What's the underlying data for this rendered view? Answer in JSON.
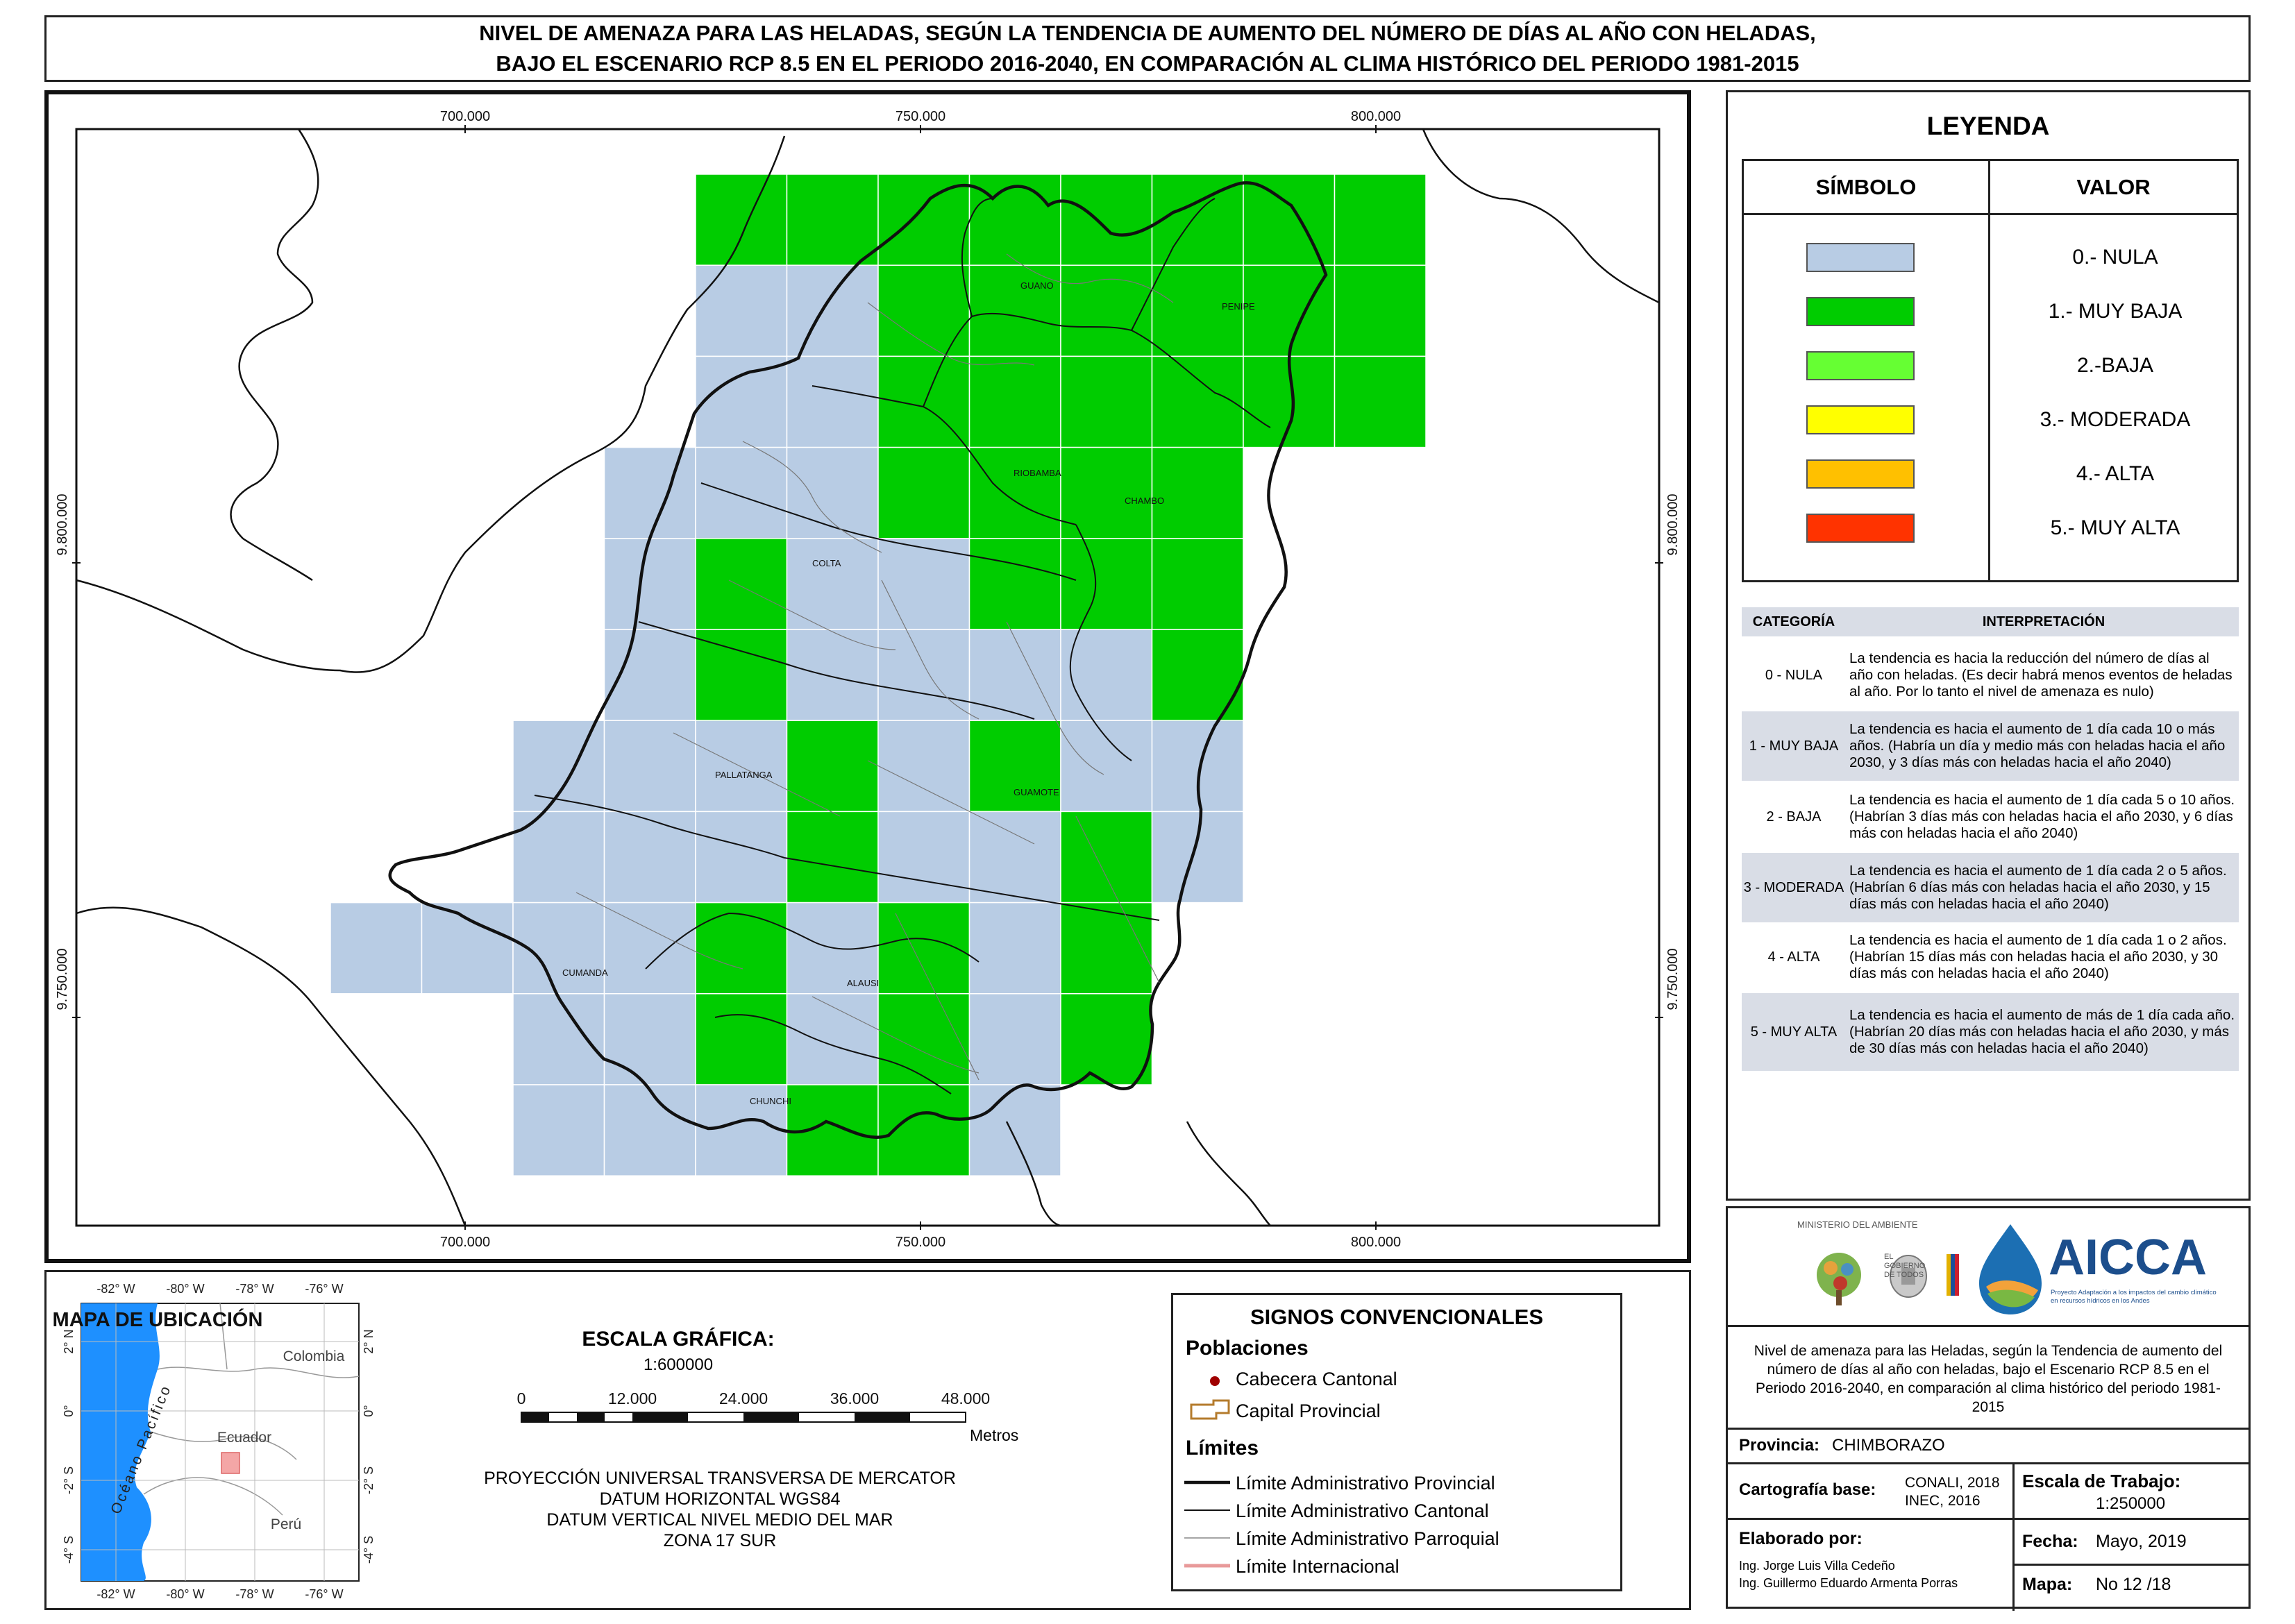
{
  "title": {
    "line1": "NIVEL DE AMENAZA PARA LAS HELADAS, SEGÚN LA TENDENCIA DE AUMENTO DEL NÚMERO DE DÍAS AL AÑO CON HELADAS,",
    "line2": "BAJO EL ESCENARIO RCP 8.5 EN EL PERIODO 2016-2040, EN COMPARACIÓN AL CLIMA HISTÓRICO DEL PERIODO 1981-2015"
  },
  "map": {
    "x_ticks": [
      "700.000",
      "750.000",
      "800.000"
    ],
    "y_ticks": [
      "9.800.000",
      "9.750.000"
    ],
    "cantons": [
      "GUANO",
      "PENIPE",
      "RIOBAMBA",
      "CHAMBO",
      "COLTA",
      "PALLATANGA",
      "GUAMOTE",
      "CUMANDA",
      "ALAUSI",
      "CHUNCHI"
    ],
    "colors": {
      "nula": "#b8cce4",
      "muy_baja": "#00cc00",
      "baja": "#66ff33",
      "moderada": "#ffff00",
      "alta": "#ffc000",
      "muy_alta": "#ff3300"
    }
  },
  "legend": {
    "title": "LEYENDA",
    "col_symbol": "SÍMBOLO",
    "col_value": "VALOR",
    "items": [
      {
        "label": "0.- NULA",
        "color": "#b8cce4"
      },
      {
        "label": "1.- MUY BAJA",
        "color": "#00cc00"
      },
      {
        "label": "2.-BAJA",
        "color": "#66ff33"
      },
      {
        "label": "3.- MODERADA",
        "color": "#ffff00"
      },
      {
        "label": "4.- ALTA",
        "color": "#ffc000"
      },
      {
        "label": "5.- MUY ALTA",
        "color": "#ff3300"
      }
    ],
    "cat_header": "CATEGORÍA",
    "interp_header": "INTERPRETACIÓN",
    "categories": [
      {
        "cat": "0 - NULA",
        "text": "La tendencia es hacia la reducción del número de días al año con heladas. (Es decir habrá menos eventos de heladas al año. Por lo tanto el nivel de amenaza es nulo)"
      },
      {
        "cat": "1 - MUY BAJA",
        "text": "La tendencia es hacia el aumento de 1 día cada 10 o más años. (Habría un día y medio más con heladas hacia el año 2030, y 3 días más con heladas hacia el año 2040)"
      },
      {
        "cat": "2 - BAJA",
        "text": "La tendencia es hacia el aumento de 1 día cada 5 o 10 años. (Habrían 3 días más con heladas hacia el año 2030, y 6 días más con heladas hacia el año 2040)"
      },
      {
        "cat": "3 - MODERADA",
        "text": "La tendencia es hacia el aumento de 1 día cada 2 o 5 años. (Habrían 6 días más con heladas hacia el año 2030, y 15 días más con heladas hacia el año 2040)"
      },
      {
        "cat": "4 - ALTA",
        "text": "La tendencia es hacia el aumento de 1 día cada 1 o 2 años. (Habrían 15 días más con heladas hacia el año 2030, y 30 días más con heladas hacia el año 2040)"
      },
      {
        "cat": "5 - MUY ALTA",
        "text": "La tendencia es hacia el aumento de más de 1 día cada año. (Habrían 20 días más con heladas hacia el año 2030, y más de 30 días más con heladas hacia el año 2040)"
      }
    ]
  },
  "location_map": {
    "title": "MAPA DE UBICACIÓN",
    "lon_labels": [
      "-82° W",
      "-80° W",
      "-78° W",
      "-76° W"
    ],
    "lat_labels": [
      "2° N",
      "0°",
      "-2° S",
      "-4° S"
    ],
    "ocean": "Océano Pacífico",
    "countries": [
      "Colombia",
      "Ecuador",
      "Perú"
    ]
  },
  "scale": {
    "title": "ESCALA GRÁFICA:",
    "ratio": "1:600000",
    "ticks": [
      "0",
      "12.000",
      "24.000",
      "36.000",
      "48.000"
    ],
    "unit": "Metros",
    "projection": [
      "PROYECCIÓN UNIVERSAL TRANSVERSA DE MERCATOR",
      "DATUM HORIZONTAL WGS84",
      "DATUM VERTICAL NIVEL MEDIO DEL MAR",
      "ZONA 17 SUR"
    ]
  },
  "conventional": {
    "title": "SIGNOS CONVENCIONALES",
    "populations_title": "Poblaciones",
    "cabecera": "Cabecera Cantonal",
    "capital": "Capital Provincial",
    "limits_title": "Límites",
    "limits": [
      "Límite Administrativo Provincial",
      "Límite Administrativo Cantonal",
      "Límite Administrativo Parroquial",
      "Límite Internacional"
    ]
  },
  "info": {
    "ministry": "MINISTERIO DEL AMBIENTE",
    "aicca": "AICCA",
    "aicca_sub": "Proyecto Adaptación a los impactos del cambio climático en recursos hídricos en los Andes",
    "gov": "EL GOBIERNO DE TODOS",
    "description": "Nivel de amenaza para las Heladas, según la Tendencia de aumento del número de días al año con heladas, bajo el Escenario RCP 8.5 en el Periodo 2016-2040, en comparación al clima histórico del periodo 1981-2015",
    "provincia_label": "Provincia:",
    "provincia_value": "CHIMBORAZO",
    "cartografia_label": "Cartografía base:",
    "cartografia_value1": "CONALI, 2018",
    "cartografia_value2": "INEC, 2016",
    "escala_label": "Escala de Trabajo:",
    "escala_value": "1:250000",
    "elaborado_label": "Elaborado por:",
    "elaborado_1": "Ing. Jorge Luis Villa Cedeño",
    "elaborado_2": "Ing. Guillermo Eduardo Armenta Porras",
    "fecha_label": "Fecha:",
    "fecha_value": "Mayo, 2019",
    "mapa_label": "Mapa:",
    "mapa_value": "No 12 /18"
  }
}
